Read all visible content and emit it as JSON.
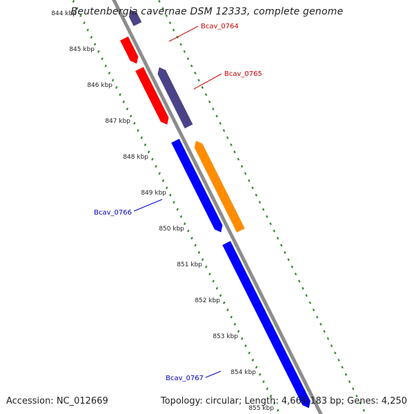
{
  "title": "Beutenbergia cavernae DSM 12333, complete genome",
  "accession_text": "Accession: NC_012669",
  "summary_text": "Topology: circular; Length: 4,669,183 bp; Genes: 4,250",
  "colors": {
    "backbone": "#8c8c8c",
    "tick": "#2e8b2e",
    "forward_gene": "#0000ff",
    "reverse_gene": "#ff0000",
    "orange_gene": "#ff8c00",
    "purple_gene": "#4b4387",
    "label_red": "#cc0000",
    "label_blue": "#0000cc"
  },
  "kbp_ticks": [
    "844 kbp",
    "845 kbp",
    "846 kbp",
    "847 kbp",
    "848 kbp",
    "849 kbp",
    "850 kbp",
    "851 kbp",
    "852 kbp",
    "853 kbp",
    "854 kbp",
    "855 kbp"
  ],
  "features": [
    {
      "name": "purple-gene-0764",
      "track": "outer",
      "color": "purple",
      "start": 844.1,
      "end": 844.5
    },
    {
      "name": "red-gene-0764",
      "track": "inner",
      "color": "red",
      "start": 844.9,
      "end": 845.6
    },
    {
      "name": "purple-gene-0765",
      "track": "outer",
      "color": "purple",
      "start": 845.7,
      "end": 847.35
    },
    {
      "name": "red-gene-0765",
      "track": "inner",
      "color": "red",
      "start": 845.75,
      "end": 847.3
    },
    {
      "name": "orange-gene-0766",
      "track": "outer",
      "color": "orange",
      "start": 847.75,
      "end": 850.25
    },
    {
      "name": "blue-gene-0766",
      "track": "inner",
      "color": "blue",
      "start": 847.75,
      "end": 850.3
    },
    {
      "name": "blue-gene-0767",
      "track": "inner",
      "color": "blue",
      "start": 850.6,
      "end": 855.2
    }
  ],
  "gene_labels": [
    {
      "text": "Bcav_0764",
      "color": "red"
    },
    {
      "text": "Bcav_0765",
      "color": "red"
    },
    {
      "text": "Bcav_0766",
      "color": "blue"
    },
    {
      "text": "Bcav_0767",
      "color": "blue"
    }
  ]
}
